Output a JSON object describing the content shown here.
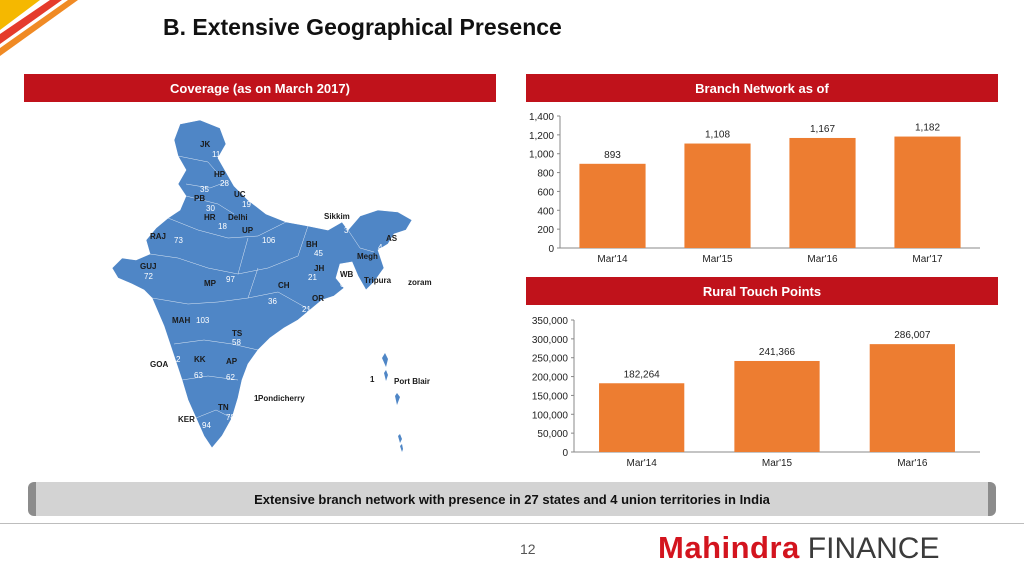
{
  "title": "B. Extensive Geographical Presence",
  "colors": {
    "accent": "#c0121b",
    "bar": "#ed7d31",
    "map": "#4f86c6"
  },
  "coverage": {
    "header": "Coverage (as on March 2017)",
    "labels": [
      {
        "id": "jk",
        "name": "JK",
        "count": "11"
      },
      {
        "id": "hp",
        "name": "HP",
        "count": "28"
      },
      {
        "id": "pb",
        "name": "PB",
        "count": "35"
      },
      {
        "id": "uc",
        "name": "UC",
        "count": "19"
      },
      {
        "id": "hr",
        "name": "HR",
        "count": "30"
      },
      {
        "id": "delhi",
        "name": "Delhi",
        "count": "18"
      },
      {
        "id": "up",
        "name": "UP",
        "count": "106"
      },
      {
        "id": "raj",
        "name": "RAJ",
        "count": "73"
      },
      {
        "id": "sikkim",
        "name": "Sikkim",
        "count": "3"
      },
      {
        "id": "as",
        "name": "AS",
        "count": "34"
      },
      {
        "id": "bh",
        "name": "BH",
        "count": "45"
      },
      {
        "id": "megh",
        "name": "Megh",
        "count": "4"
      },
      {
        "id": "guj",
        "name": "GUJ",
        "count": "72"
      },
      {
        "id": "jh",
        "name": "JH",
        "count": "21"
      },
      {
        "id": "wb",
        "name": "WB",
        "count": "63"
      },
      {
        "id": "tripura",
        "name": "Tripura",
        "count": "3"
      },
      {
        "id": "mizoram",
        "name": "zoram",
        "count": ""
      },
      {
        "id": "mp",
        "name": "MP",
        "count": "97"
      },
      {
        "id": "ch",
        "name": "CH",
        "count": "36"
      },
      {
        "id": "or",
        "name": "OR",
        "count": "21"
      },
      {
        "id": "mah",
        "name": "MAH",
        "count": "103"
      },
      {
        "id": "ts",
        "name": "TS",
        "count": "58"
      },
      {
        "id": "goa",
        "name": "GOA",
        "count": "2"
      },
      {
        "id": "kk",
        "name": "KK",
        "count": "63"
      },
      {
        "id": "ap",
        "name": "AP",
        "count": "62"
      },
      {
        "id": "portblair",
        "name": "Port Blair",
        "count": "1"
      },
      {
        "id": "pondicherry",
        "name": "Pondicherry",
        "count": "1"
      },
      {
        "id": "tn",
        "name": "TN",
        "count": "78"
      },
      {
        "id": "ker",
        "name": "KER",
        "count": "94"
      }
    ]
  },
  "branch_header": "Branch Network as of",
  "rural_header": "Rural Touch Points",
  "footer_text": "Extensive branch network with presence in 27 states and 4 union territories in India",
  "page_number": "12",
  "logo": {
    "brand": "Mahindra",
    "sub": "FINANCE"
  },
  "chart_data": [
    {
      "type": "bar",
      "title": "Branch Network as of",
      "categories": [
        "Mar'14",
        "Mar'15",
        "Mar'16",
        "Mar'17"
      ],
      "values": [
        893,
        1108,
        1167,
        1182
      ],
      "value_labels": [
        "893",
        "1,108",
        "1,167",
        "1,182"
      ],
      "ylim": [
        0,
        1400
      ],
      "yticks": [
        0,
        200,
        400,
        600,
        800,
        1000,
        1200,
        1400
      ],
      "ytick_labels": [
        "0",
        "200",
        "400",
        "600",
        "800",
        "1,000",
        "1,200",
        "1,400"
      ],
      "grid": false,
      "legend": "none"
    },
    {
      "type": "bar",
      "title": "Rural Touch Points",
      "categories": [
        "Mar'14",
        "Mar'15",
        "Mar'16"
      ],
      "values": [
        182264,
        241366,
        286007
      ],
      "value_labels": [
        "182,264",
        "241,366",
        "286,007"
      ],
      "ylim": [
        0,
        350000
      ],
      "yticks": [
        0,
        50000,
        100000,
        150000,
        200000,
        250000,
        300000,
        350000
      ],
      "ytick_labels": [
        "0",
        "50,000",
        "100,000",
        "150,000",
        "200,000",
        "250,000",
        "300,000",
        "350,000"
      ],
      "grid": false,
      "legend": "none"
    }
  ]
}
